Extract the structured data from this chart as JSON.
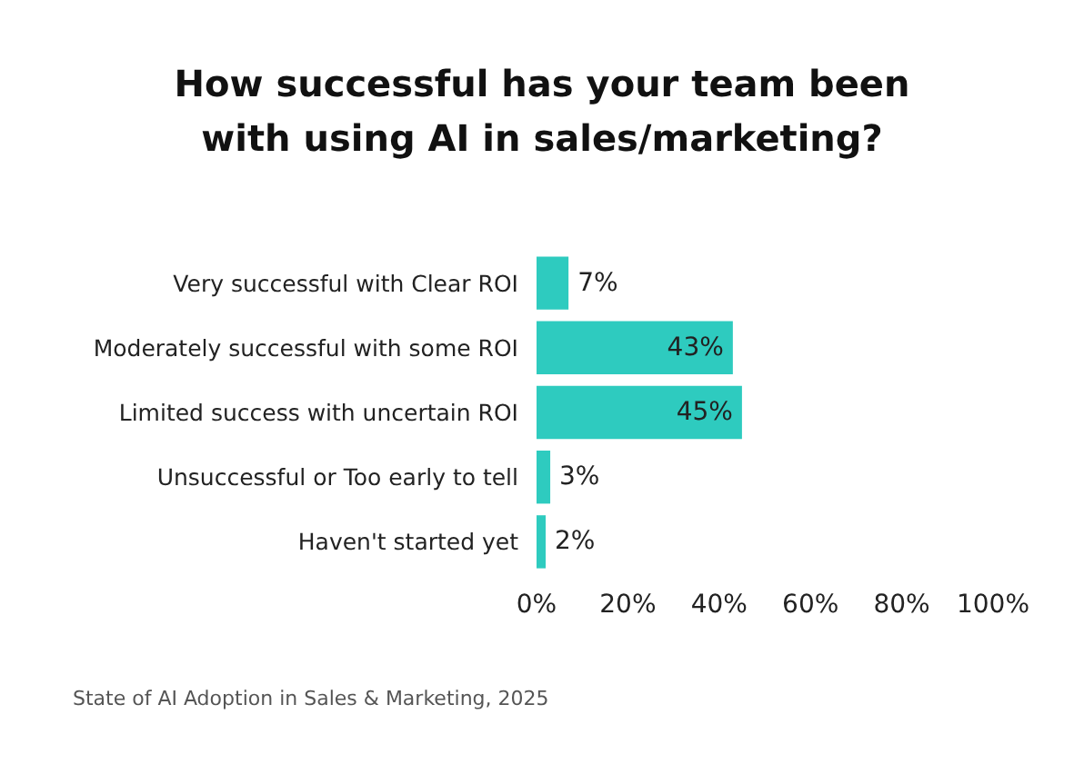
{
  "chart_data": {
    "type": "bar",
    "orientation": "horizontal",
    "title": "How successful has your team been\nwith using AI in sales/marketing?",
    "categories": [
      "Very successful with Clear ROI",
      "Moderately successful with some ROI",
      "Limited success with uncertain ROI",
      "Unsuccessful or Too early to tell",
      "Haven't started yet"
    ],
    "values": [
      7,
      43,
      45,
      3,
      2
    ],
    "color": "#2ecbbf",
    "value_labels": [
      "7%",
      "43%",
      "45%",
      "3%",
      "2%"
    ],
    "xlim": [
      0,
      100
    ],
    "xticks": [
      {
        "value": 0,
        "label": "0%"
      },
      {
        "value": 20,
        "label": "20%"
      },
      {
        "value": 40,
        "label": "40%"
      },
      {
        "value": 60,
        "label": "60%"
      },
      {
        "value": 80,
        "label": "80%"
      },
      {
        "value": 100,
        "label": "100%"
      }
    ],
    "grid": false,
    "annotations": [
      "State of AI Adoption in Sales & Marketing, 2025"
    ]
  }
}
